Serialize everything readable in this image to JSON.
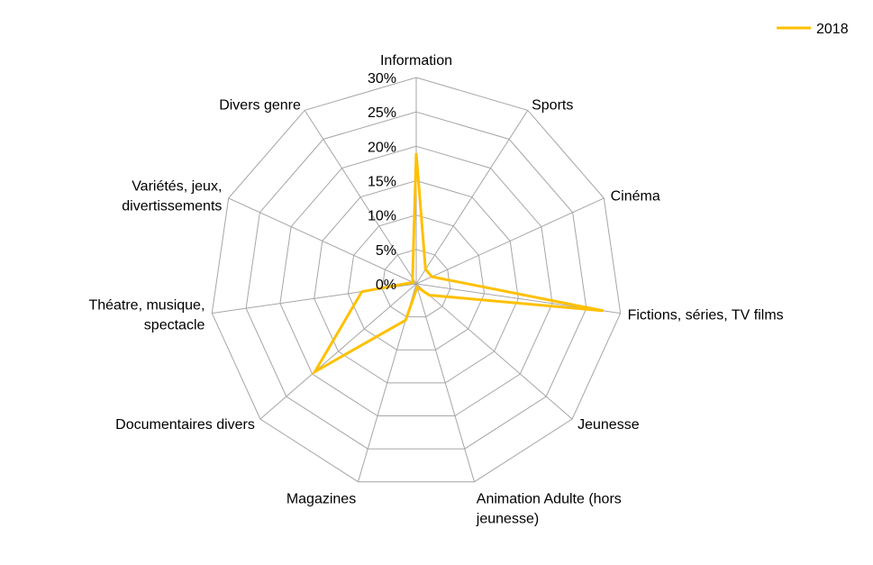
{
  "chart_data": {
    "type": "radar",
    "categories": [
      "Information",
      "Sports",
      "Cinéma",
      "Fictions, séries, TV films",
      "Jeunesse",
      "Animation Adulte (hors jeunesse)",
      "Magazines",
      "Documentaires divers",
      "Théatre, musique, spectacle",
      "Variétés, jeux, divertissements",
      "Divers genre"
    ],
    "category_lines": [
      [
        "Information"
      ],
      [
        "Sports"
      ],
      [
        "Cinéma"
      ],
      [
        "Fictions, séries, TV films"
      ],
      [
        "Jeunesse"
      ],
      [
        "Animation Adulte (hors",
        "jeunesse)"
      ],
      [
        "Magazines"
      ],
      [
        "Documentaires divers"
      ],
      [
        "Théatre, musique,",
        "spectacle"
      ],
      [
        "Variétés, jeux,",
        "divertissements"
      ],
      [
        "Divers genre"
      ]
    ],
    "series": [
      {
        "name": "2018",
        "color": "#FFC000",
        "values": [
          19,
          2.5,
          2.5,
          27.5,
          2.5,
          0.5,
          5.5,
          19.5,
          8,
          0.5,
          1
        ]
      }
    ],
    "tick_labels": [
      "0%",
      "5%",
      "10%",
      "15%",
      "20%",
      "25%",
      "30%"
    ],
    "rlim": [
      0,
      30
    ],
    "grid": true,
    "gridline_color": "#A6A6A6",
    "legend_position": "top-right"
  }
}
